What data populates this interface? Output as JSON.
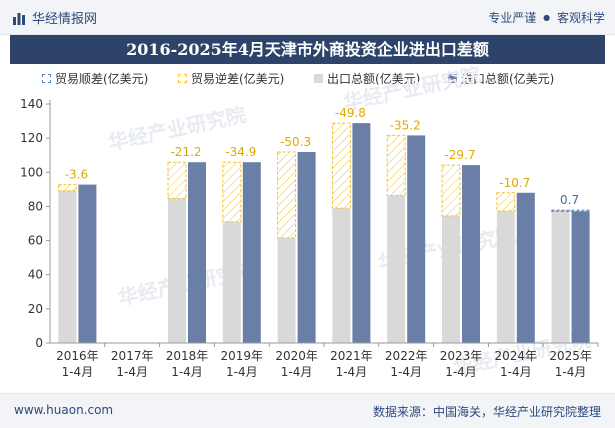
{
  "header": {
    "brand": "华经情报网",
    "tag_left": "专业严谨",
    "tag_sep": "●",
    "tag_right": "客观科学"
  },
  "title": "2016-2025年4月天津市外商投资企业进出口差额",
  "legend": {
    "surplus": "贸易顺差(亿美元)",
    "deficit": "贸易逆差(亿美元)",
    "export": "出口总额(亿美元)",
    "import": "进口总额(亿美元)"
  },
  "footer": {
    "site": "www.huaon.com",
    "source": "数据来源：中国海关，华经产业研究院整理"
  },
  "watermark": "华经产业研究院",
  "colors": {
    "export": "#d9d9d9",
    "import": "#6a7fa8",
    "deficit_line": "#f2c230",
    "surplus_line": "#5a86b8",
    "label_deficit": "#e0a800",
    "label_surplus": "#3b6ea5"
  },
  "chart_data": {
    "type": "bar",
    "categories": [
      {
        "year": "2016年",
        "period": "1-4月"
      },
      {
        "year": "2017年",
        "period": "1-4月"
      },
      {
        "year": "2018年",
        "period": "1-4月"
      },
      {
        "year": "2019年",
        "period": "1-4月"
      },
      {
        "year": "2020年",
        "period": "1-4月"
      },
      {
        "year": "2021年",
        "period": "1-4月"
      },
      {
        "year": "2022年",
        "period": "1-4月"
      },
      {
        "year": "2023年",
        "period": "1-4月"
      },
      {
        "year": "2024年",
        "period": "1-4月"
      },
      {
        "year": "2025年",
        "period": "1-4月"
      }
    ],
    "series": [
      {
        "name": "出口总额(亿美元)",
        "values": [
          89.2,
          null,
          84.7,
          71.0,
          61.6,
          79.0,
          86.4,
          74.5,
          77.3,
          77.8
        ]
      },
      {
        "name": "进口总额(亿美元)",
        "values": [
          92.8,
          null,
          105.9,
          105.9,
          111.9,
          128.8,
          121.6,
          104.2,
          88.0,
          77.1
        ]
      }
    ],
    "balance": [
      -3.6,
      null,
      -21.2,
      -34.9,
      -50.3,
      -49.8,
      -35.2,
      -29.7,
      -10.7,
      0.7
    ],
    "balance_labels": [
      "-3.6",
      "",
      "-21.2",
      "-34.9",
      "-50.3",
      "-49.8",
      "-35.2",
      "-29.7",
      "-10.7",
      "0.7"
    ],
    "ylim": [
      0,
      140
    ],
    "yticks": [
      0,
      20,
      40,
      60,
      80,
      100,
      120,
      140
    ],
    "grid": false,
    "legend_position": "top"
  }
}
